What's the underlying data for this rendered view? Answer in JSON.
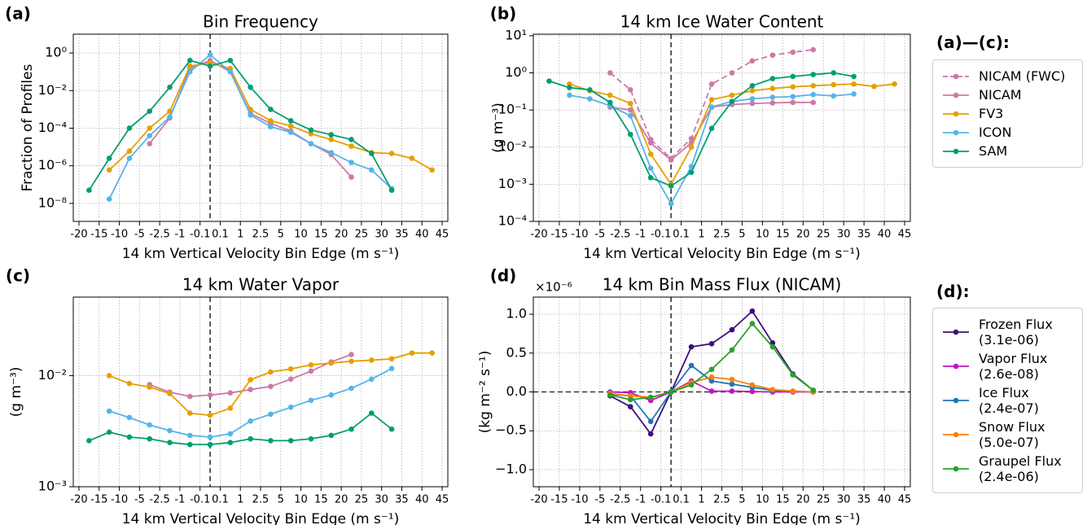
{
  "chart_data": [
    {
      "type": "line",
      "panel_label": "(a)",
      "title": "Bin Frequency",
      "xlabel": "14 km Vertical Velocity Bin Edge (m s⁻¹)",
      "ylabel": "Fraction of Profiles",
      "x_edges": [
        -20,
        -15,
        -10,
        -5,
        -2.5,
        -1,
        -0.1,
        0.1,
        1,
        2.5,
        5,
        10,
        15,
        20,
        25,
        30,
        35,
        40,
        45
      ],
      "log_y": true,
      "ylim": [
        1.1e-09,
        10
      ],
      "yticks": [
        {
          "value": 1e-08,
          "label": "10⁻⁸"
        },
        {
          "value": 1e-06,
          "label": "10⁻⁶"
        },
        {
          "value": 0.0001,
          "label": "10⁻⁴"
        },
        {
          "value": 0.01,
          "label": "10⁻²"
        },
        {
          "value": 1,
          "label": "10⁰"
        }
      ],
      "grid": true,
      "zero_lines": true,
      "series": [
        {
          "name": "NICAM",
          "color": "#cc79a7",
          "values": [
            null,
            null,
            null,
            1.5e-05,
            0.00035,
            0.15,
            0.4,
            0.1,
            0.0006,
            0.00018,
            7e-05,
            1.5e-05,
            4e-06,
            2.5e-07,
            null,
            null,
            null,
            null
          ]
        },
        {
          "name": "FV3",
          "color": "#e69f00",
          "values": [
            null,
            6e-07,
            6e-06,
            0.0001,
            0.0008,
            0.2,
            0.3,
            0.15,
            0.001,
            0.00025,
            0.00013,
            5e-05,
            2.5e-05,
            1.1e-05,
            5e-06,
            4.5e-06,
            2.5e-06,
            6e-07
          ]
        },
        {
          "name": "ICON",
          "color": "#56b4e9",
          "values": [
            null,
            1.7e-08,
            2.5e-06,
            4e-05,
            0.0004,
            0.1,
            0.8,
            0.1,
            0.0005,
            0.00012,
            6e-05,
            1.5e-05,
            5e-06,
            1.5e-06,
            6e-07,
            6e-08,
            null,
            null
          ]
        },
        {
          "name": "SAM",
          "color": "#009e73",
          "values": [
            5e-08,
            2.5e-06,
            0.0001,
            0.0008,
            0.015,
            0.4,
            0.2,
            0.4,
            0.015,
            0.001,
            0.00025,
            8e-05,
            4.5e-05,
            2.5e-05,
            4.5e-06,
            5e-08,
            null,
            null
          ]
        }
      ]
    },
    {
      "type": "line",
      "panel_label": "(b)",
      "title": "14 km Ice Water Content",
      "xlabel": "14 km Vertical Velocity Bin Edge (m s⁻¹)",
      "ylabel": "(g m⁻³)",
      "x_edges": [
        -20,
        -15,
        -10,
        -5,
        -2.5,
        -1,
        -0.1,
        0.1,
        1,
        2.5,
        5,
        10,
        15,
        20,
        25,
        30,
        35,
        40,
        45
      ],
      "log_y": true,
      "ylim": [
        0.0001,
        11
      ],
      "yticks": [
        {
          "value": 0.0001,
          "label": "10⁻⁴"
        },
        {
          "value": 0.001,
          "label": "10⁻³"
        },
        {
          "value": 0.01,
          "label": "10⁻²"
        },
        {
          "value": 0.1,
          "label": "10⁻¹"
        },
        {
          "value": 1,
          "label": "10⁰"
        },
        {
          "value": 10,
          "label": "10¹"
        }
      ],
      "grid": true,
      "zero_lines": true,
      "legend_title": "(a)—(c):",
      "series": [
        {
          "name": "NICAM (FWC)",
          "color": "#cc79a7",
          "dashed": true,
          "values": [
            null,
            null,
            null,
            1.0,
            0.35,
            0.016,
            0.005,
            0.017,
            0.5,
            1.0,
            2.1,
            3.0,
            3.6,
            4.2,
            null,
            null,
            null,
            null
          ]
        },
        {
          "name": "NICAM",
          "color": "#cc79a7",
          "values": [
            null,
            null,
            null,
            0.12,
            0.1,
            0.013,
            0.0045,
            0.013,
            0.12,
            0.14,
            0.15,
            0.155,
            0.16,
            0.16,
            null,
            null,
            null,
            null
          ]
        },
        {
          "name": "FV3",
          "color": "#e69f00",
          "values": [
            null,
            0.5,
            0.33,
            0.25,
            0.15,
            0.0065,
            0.001,
            0.01,
            0.19,
            0.25,
            0.33,
            0.38,
            0.42,
            0.45,
            0.48,
            0.5,
            0.43,
            0.5
          ]
        },
        {
          "name": "ICON",
          "color": "#56b4e9",
          "values": [
            null,
            0.25,
            0.2,
            0.13,
            0.07,
            0.0027,
            0.0003,
            0.003,
            0.12,
            0.17,
            0.2,
            0.22,
            0.23,
            0.26,
            0.24,
            0.27,
            null,
            null
          ]
        },
        {
          "name": "SAM",
          "color": "#009e73",
          "values": [
            0.6,
            0.4,
            0.35,
            0.16,
            0.022,
            0.0015,
            0.0009,
            0.0021,
            0.032,
            0.17,
            0.45,
            0.7,
            0.8,
            0.9,
            1.0,
            0.8,
            null,
            null
          ]
        }
      ]
    },
    {
      "type": "line",
      "panel_label": "(c)",
      "title": "14 km Water Vapor",
      "xlabel": "14 km Vertical Velocity Bin Edge (m s⁻¹)",
      "ylabel": "(g m⁻³)",
      "x_edges": [
        -20,
        -15,
        -10,
        -5,
        -2.5,
        -1,
        -0.1,
        0.1,
        1,
        2.5,
        5,
        10,
        15,
        20,
        25,
        30,
        35,
        40,
        45
      ],
      "log_y": true,
      "ylim": [
        0.001,
        0.051
      ],
      "yticks": [
        {
          "value": 0.001,
          "label": "10⁻³"
        },
        {
          "value": 0.01,
          "label": "10⁻²"
        }
      ],
      "grid": true,
      "zero_lines": true,
      "series": [
        {
          "name": "NICAM",
          "color": "#cc79a7",
          "values": [
            null,
            null,
            null,
            0.0083,
            0.0071,
            0.0065,
            0.0067,
            0.007,
            0.0075,
            0.008,
            0.0093,
            0.011,
            0.0133,
            0.0155,
            null,
            null,
            null,
            null
          ]
        },
        {
          "name": "FV3",
          "color": "#e69f00",
          "values": [
            null,
            0.01,
            0.0085,
            0.0079,
            0.0069,
            0.0046,
            0.0044,
            0.0051,
            0.0092,
            0.0108,
            0.0115,
            0.0125,
            0.013,
            0.0135,
            0.0138,
            0.0142,
            0.016,
            0.016
          ]
        },
        {
          "name": "ICON",
          "color": "#56b4e9",
          "values": [
            null,
            0.0048,
            0.0042,
            0.0036,
            0.0032,
            0.0029,
            0.0028,
            0.003,
            0.0039,
            0.0045,
            0.0052,
            0.006,
            0.0067,
            0.0077,
            0.0093,
            0.0116,
            null,
            null
          ]
        },
        {
          "name": "SAM",
          "color": "#009e73",
          "values": [
            0.0026,
            0.0031,
            0.0028,
            0.0027,
            0.0025,
            0.0024,
            0.0024,
            0.0025,
            0.0027,
            0.0026,
            0.0026,
            0.0027,
            0.0029,
            0.0033,
            0.0046,
            0.0033,
            null,
            null
          ]
        }
      ]
    },
    {
      "type": "line",
      "panel_label": "(d)",
      "title": "14 km Bin Mass Flux (NICAM)",
      "y_offset_label": "×10⁻⁶",
      "xlabel": "14 km Vertical Velocity Bin Edge (m s⁻¹)",
      "ylabel": "(kg m⁻² s⁻¹)",
      "x_edges": [
        -20,
        -15,
        -10,
        -5,
        -2.5,
        -1,
        -0.1,
        0.1,
        1,
        2.5,
        5,
        10,
        15,
        20,
        25,
        30,
        35,
        40,
        45
      ],
      "log_y": false,
      "ylim": [
        -1.22,
        1.22
      ],
      "yticks": [
        {
          "value": -1,
          "label": "−1.0"
        },
        {
          "value": -0.5,
          "label": "−0.5"
        },
        {
          "value": 0,
          "label": "0.0"
        },
        {
          "value": 0.5,
          "label": "0.5"
        },
        {
          "value": 1,
          "label": "1.0"
        }
      ],
      "grid": true,
      "zero_lines": true,
      "legend_title": "(d):",
      "series": [
        {
          "name": "Frozen Flux\n(3.1e-06)",
          "color": "#3f0f7a",
          "values": [
            null,
            null,
            null,
            -0.05,
            -0.19,
            -0.54,
            0,
            0.58,
            0.62,
            0.8,
            1.04,
            0.63,
            0.23,
            0.02,
            null,
            null,
            null,
            null
          ]
        },
        {
          "name": "Vapor Flux\n(2.6e-08)",
          "color": "#c017c0",
          "values": [
            null,
            null,
            null,
            0,
            -0.01,
            -0.11,
            0,
            0.14,
            0.01,
            0.01,
            0.005,
            0,
            0,
            0,
            null,
            null,
            null,
            null
          ]
        },
        {
          "name": "Ice Flux\n(2.4e-07)",
          "color": "#1f77b4",
          "values": [
            null,
            null,
            null,
            -0.03,
            -0.05,
            -0.38,
            0,
            0.34,
            0.14,
            0.1,
            0.06,
            0.02,
            0.01,
            0,
            null,
            null,
            null,
            null
          ]
        },
        {
          "name": "Snow Flux\n(5.0e-07)",
          "color": "#ff7f0e",
          "values": [
            null,
            null,
            null,
            -0.02,
            -0.05,
            -0.07,
            0,
            0.12,
            0.19,
            0.16,
            0.09,
            0.03,
            0.01,
            0,
            null,
            null,
            null,
            null
          ]
        },
        {
          "name": "Graupel Flux\n(2.4e-06)",
          "color": "#2ca02c",
          "values": [
            null,
            null,
            null,
            -0.04,
            -0.1,
            -0.07,
            0,
            0.09,
            0.29,
            0.54,
            0.88,
            0.58,
            0.22,
            0.02,
            null,
            null,
            null,
            null
          ]
        }
      ]
    }
  ]
}
